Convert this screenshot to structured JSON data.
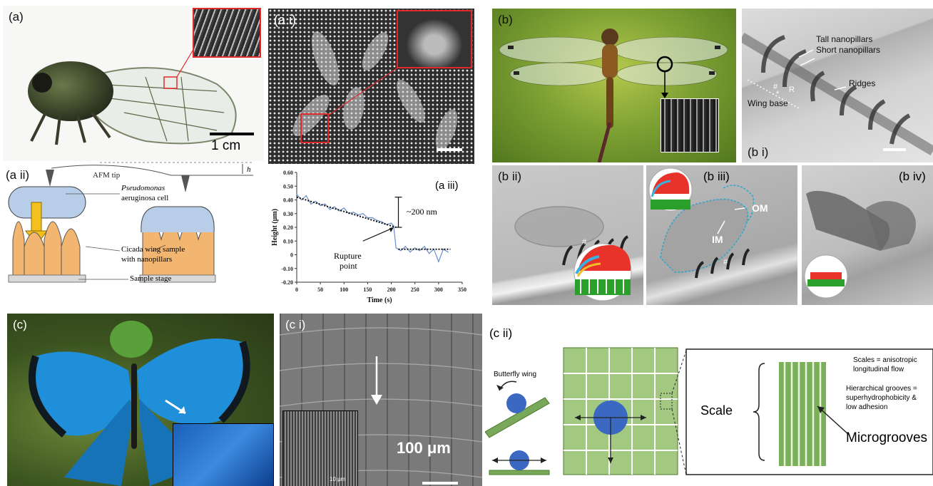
{
  "panels": {
    "a": {
      "label": "(a)",
      "scale_bar": "1 cm"
    },
    "a_i": {
      "label": "(a i)"
    },
    "a_ii": {
      "label": "(a ii)",
      "afm_tip": "AFM tip",
      "height_symbol": "h",
      "cell_line1": "Pseudomonas",
      "cell_line2": "aeruginosa cell",
      "wing_line1": "Cicada wing sample",
      "wing_line2": "with nanopillars",
      "stage": "Sample stage"
    },
    "a_iii": {
      "label": "(a iii)",
      "annotation_drop": "~200 nm",
      "annotation_rupture_1": "Rupture",
      "annotation_rupture_2": "point"
    },
    "b": {
      "label": "(b)"
    },
    "b_i": {
      "label": "(b i)",
      "tall": "Tall nanopillars",
      "short": "Short nanopillars",
      "ridges": "Ridges",
      "wing_base": "Wing base",
      "r": "R",
      "hash": "#",
      "star": "*"
    },
    "b_ii": {
      "label": "(b ii)",
      "hash": "#"
    },
    "b_iii": {
      "label": "(b iii)",
      "om": "OM",
      "im": "IM",
      "hash": "#"
    },
    "b_iv": {
      "label": "(b iv)"
    },
    "c": {
      "label": "(c)"
    },
    "c_i": {
      "label": "(c i)",
      "scale_big": "100 μm",
      "scale_inset": "10 μm"
    },
    "c_ii": {
      "label": "(c ii)",
      "butterfly_wing": "Butterfly wing",
      "scale": "Scale",
      "note1_line1": "Scales = anisotropic",
      "note1_line2": "longitudinal flow",
      "note2_line1": "Hierarchical grooves =",
      "note2_line2": "superhydrophobicity &",
      "note2_line3": "low adhesion",
      "microgrooves": "Microgrooves"
    }
  },
  "chart_data": {
    "type": "line",
    "title": "",
    "xlabel": "Time (s)",
    "ylabel": "Height (μm)",
    "xlim": [
      0,
      350
    ],
    "ylim": [
      -0.2,
      0.6
    ],
    "xticks": [
      "0",
      "50",
      "100",
      "150",
      "200",
      "250",
      "300",
      "350"
    ],
    "yticks": [
      "-0.20",
      "-0.10",
      "0",
      "0.10",
      "0.20",
      "0.30",
      "0.40",
      "0.50",
      "0.60"
    ],
    "series": [
      {
        "x": [
          0,
          10,
          20,
          30,
          40,
          50,
          60,
          70,
          80,
          90,
          100,
          110,
          120,
          130,
          140,
          150,
          160,
          170,
          180,
          190,
          200,
          205,
          210,
          220,
          230,
          240,
          250,
          260,
          270,
          280,
          290,
          300,
          310,
          320
        ],
        "values": [
          0.44,
          0.4,
          0.43,
          0.37,
          0.39,
          0.36,
          0.37,
          0.33,
          0.35,
          0.32,
          0.34,
          0.3,
          0.31,
          0.29,
          0.3,
          0.27,
          0.27,
          0.25,
          0.24,
          0.22,
          0.23,
          0.21,
          0.05,
          0.03,
          0.06,
          0.02,
          0.05,
          0.03,
          0.06,
          0.01,
          0.04,
          -0.05,
          0.04,
          0.02
        ]
      }
    ],
    "trend_lines": [
      {
        "x": [
          0,
          210
        ],
        "values": [
          0.42,
          0.2
        ]
      },
      {
        "x": [
          215,
          325
        ],
        "values": [
          0.04,
          0.04
        ]
      }
    ],
    "color": "#6a8fc9",
    "trend_color": "#111111",
    "grid": false
  }
}
